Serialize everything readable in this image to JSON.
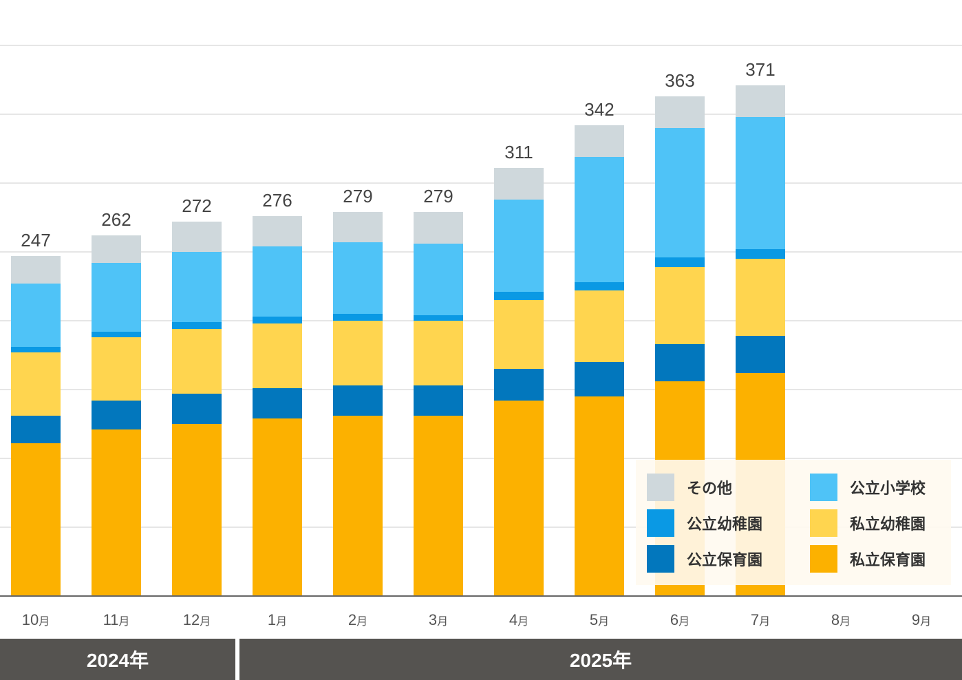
{
  "chart_data": {
    "type": "bar",
    "stacked": true,
    "categories": [
      "10月",
      "11月",
      "12月",
      "1月",
      "2月",
      "3月",
      "4月",
      "5月",
      "6月",
      "7月",
      "8月",
      "9月"
    ],
    "category_parts": [
      [
        "10",
        "月"
      ],
      [
        "11",
        "月"
      ],
      [
        "12",
        "月"
      ],
      [
        "1",
        "月"
      ],
      [
        "2",
        "月"
      ],
      [
        "3",
        "月"
      ],
      [
        "4",
        "月"
      ],
      [
        "5",
        "月"
      ],
      [
        "6",
        "月"
      ],
      [
        "7",
        "月"
      ],
      [
        "8",
        "月"
      ],
      [
        "9",
        "月"
      ]
    ],
    "totals": [
      247,
      262,
      272,
      276,
      279,
      279,
      311,
      342,
      363,
      371,
      null,
      null
    ],
    "series": [
      {
        "name": "私立保育園",
        "color": "#FCB100",
        "values": [
          111,
          121,
          125,
          129,
          131,
          131,
          142,
          145,
          156,
          162,
          null,
          null
        ]
      },
      {
        "name": "公立保育園",
        "color": "#0277BD",
        "values": [
          20,
          21,
          22,
          22,
          22,
          22,
          23,
          25,
          27,
          27,
          null,
          null
        ]
      },
      {
        "name": "私立幼稚園",
        "color": "#FFD54F",
        "values": [
          46,
          46,
          47,
          47,
          47,
          47,
          50,
          52,
          56,
          56,
          null,
          null
        ]
      },
      {
        "name": "公立幼稚園",
        "color": "#0A99E4",
        "values": [
          4,
          4,
          5,
          5,
          5,
          4,
          6,
          6,
          7,
          7,
          null,
          null
        ]
      },
      {
        "name": "公立小学校",
        "color": "#4FC3F7",
        "values": [
          46,
          50,
          51,
          51,
          52,
          52,
          67,
          91,
          94,
          96,
          null,
          null
        ]
      },
      {
        "name": "その他",
        "color": "#CFD8DC",
        "values": [
          20,
          20,
          22,
          22,
          22,
          23,
          23,
          23,
          23,
          23,
          null,
          null
        ]
      }
    ],
    "ylim": [
      0,
      400
    ],
    "grid": true,
    "legend_position": "bottom-right",
    "years": [
      {
        "label": "2024年",
        "span": 3
      },
      {
        "label": "2025年",
        "span": 9
      }
    ]
  },
  "legend": {
    "items": [
      {
        "label": "その他",
        "color": "#CFD8DC"
      },
      {
        "label": "公立小学校",
        "color": "#4FC3F7"
      },
      {
        "label": "公立幼稚園",
        "color": "#0A99E4"
      },
      {
        "label": "私立幼稚園",
        "color": "#FFD54F"
      },
      {
        "label": "公立保育園",
        "color": "#0277BD"
      },
      {
        "label": "私立保育園",
        "color": "#FCB100"
      }
    ]
  },
  "years": {
    "y2024": "2024年",
    "y2025": "2025年"
  }
}
